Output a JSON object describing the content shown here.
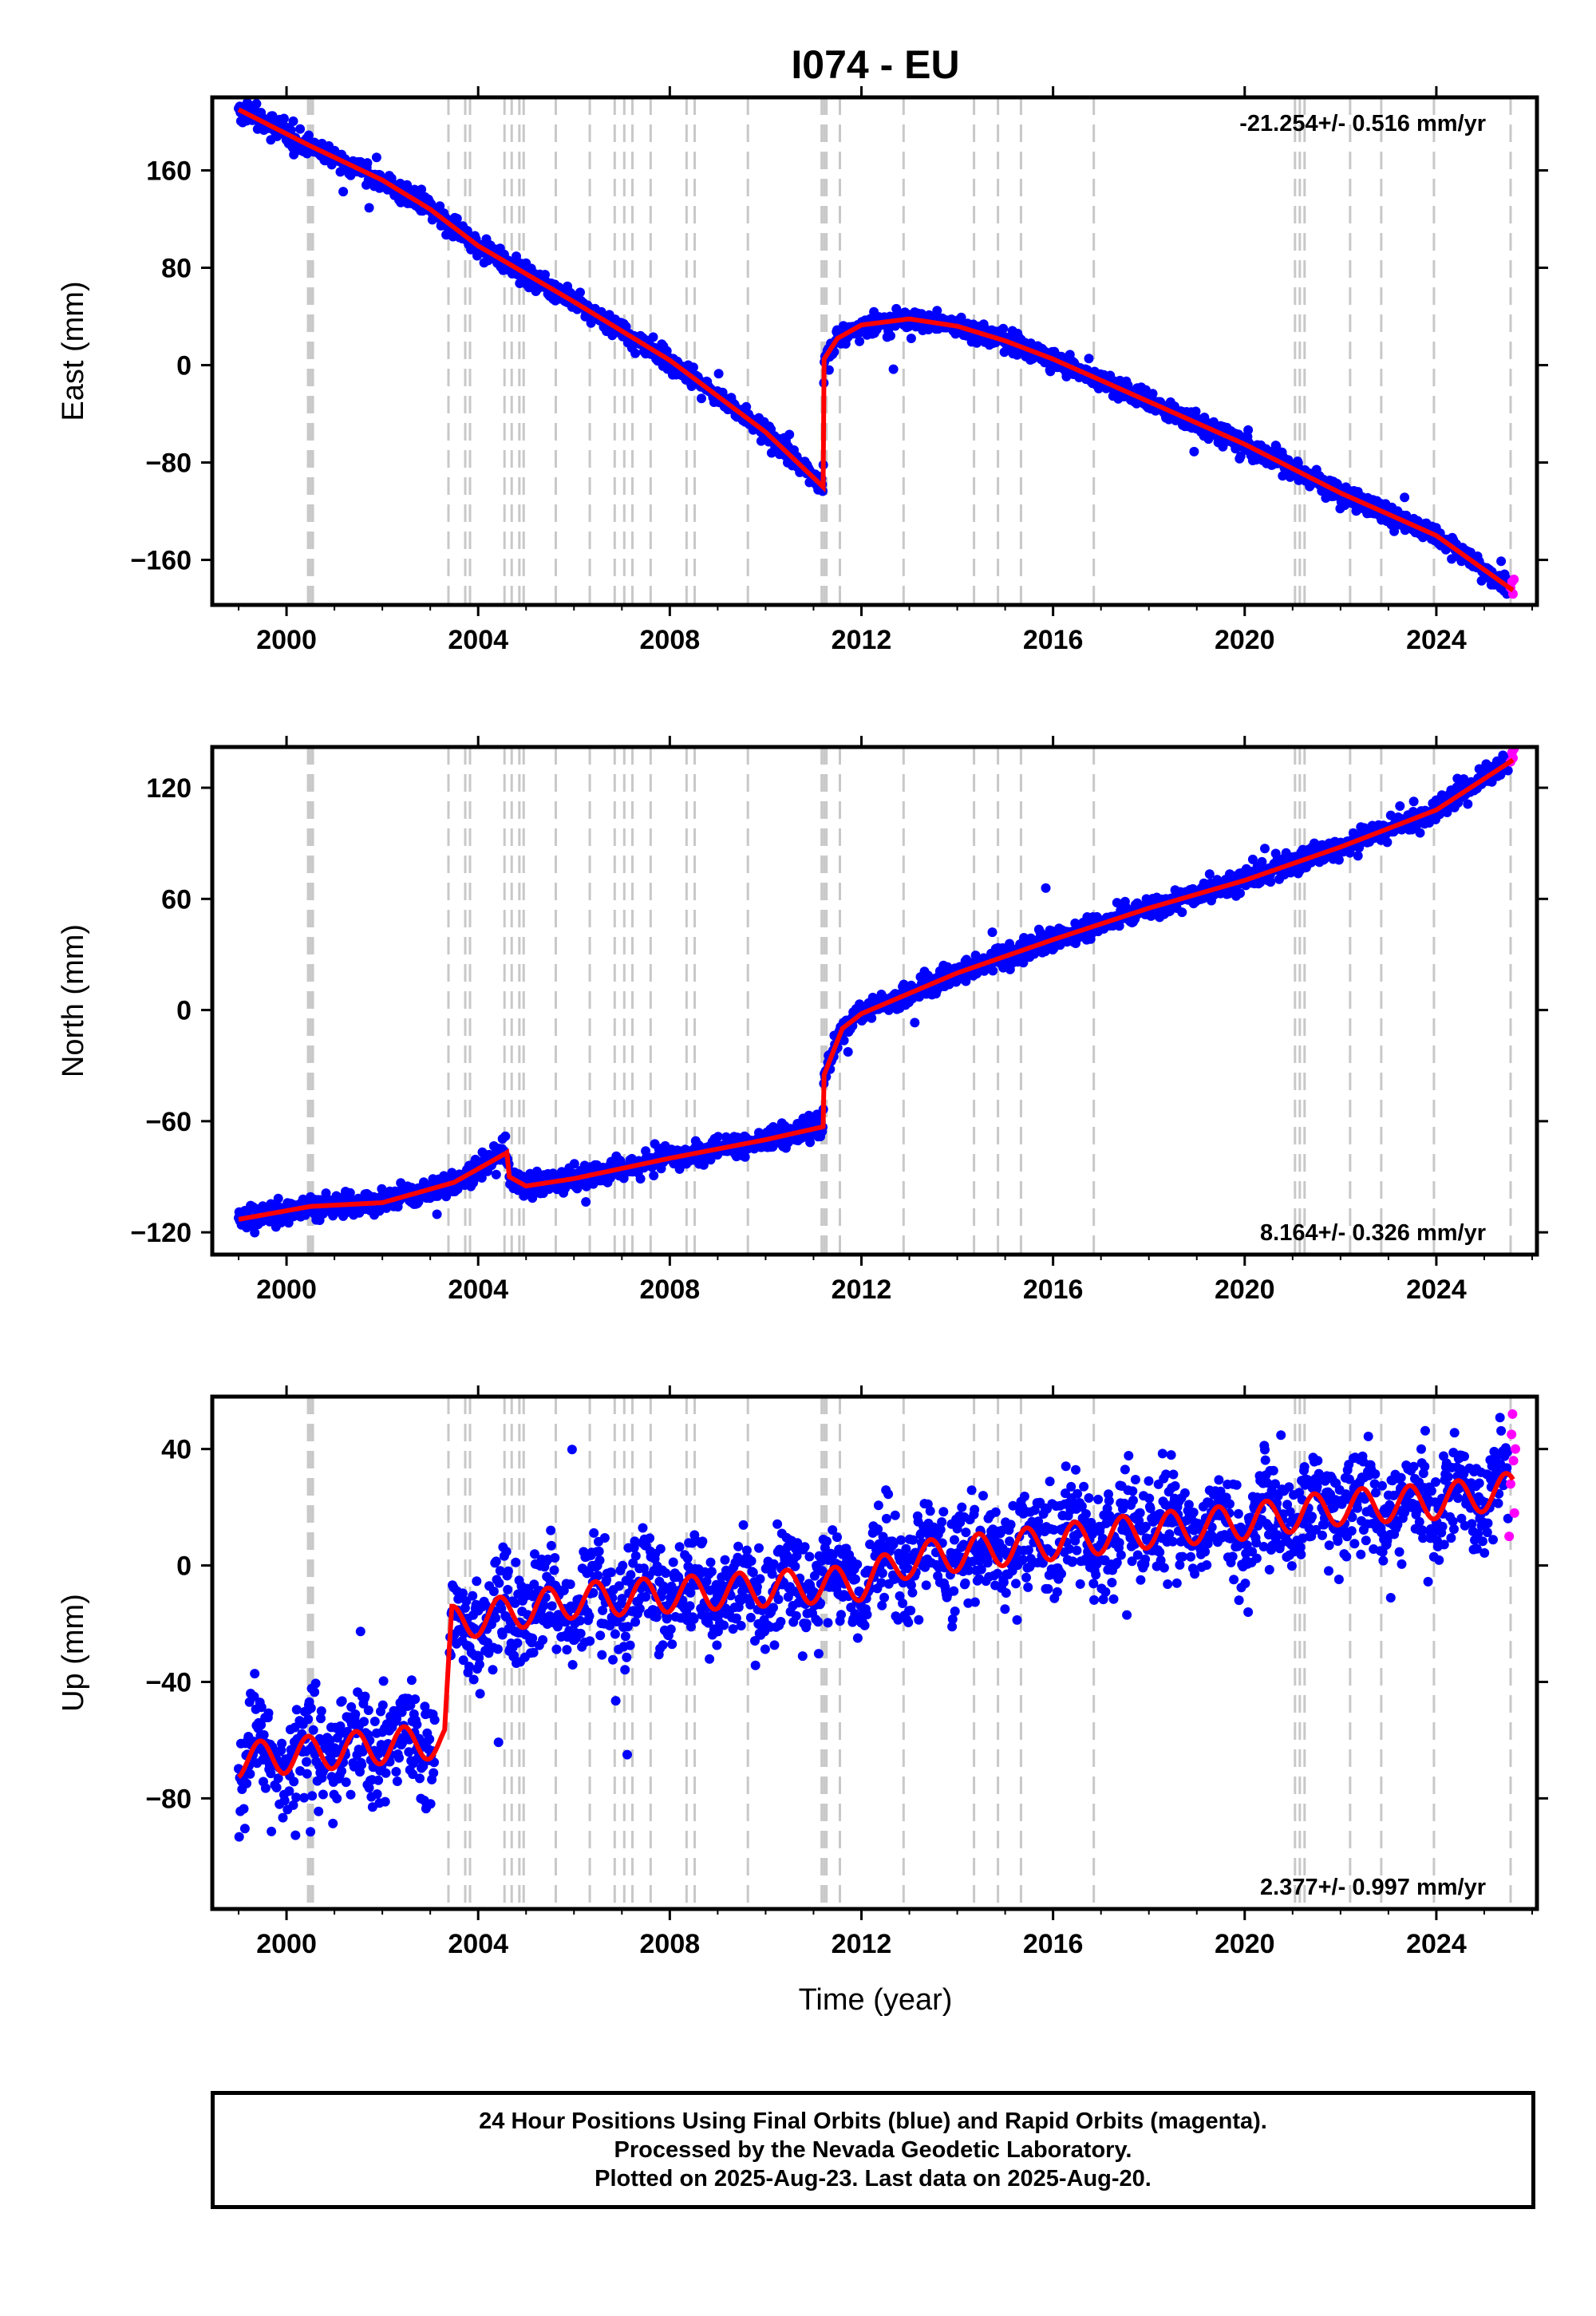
{
  "figure": {
    "title": "I074 - EU",
    "xlabel": "Time (year)"
  },
  "colors": {
    "final_orbits": "#0000ff",
    "rapid_orbits": "#ff00ff",
    "model": "#ff0000",
    "event_lines": "#c8c8c8",
    "frame": "#000000"
  },
  "chart_data": [
    {
      "type": "scatter",
      "name": "east",
      "ylabel": "East (mm)",
      "rate_label": "-21.254+/- 0.516 mm/yr",
      "rate_position": "top-right",
      "xlim": [
        1998.45,
        2026.1
      ],
      "ylim": [
        -197,
        220
      ],
      "xticks": [
        2000,
        2004,
        2008,
        2012,
        2016,
        2020,
        2024
      ],
      "xtick_labels": [
        "2000",
        "2004",
        "2008",
        "2012",
        "2016",
        "2020",
        "2024"
      ],
      "yticks": [
        -160,
        -80,
        0,
        80,
        160
      ],
      "ytick_labels": [
        "−160",
        "−80",
        "0",
        "80",
        "160"
      ],
      "model_knots": [
        [
          1999.0,
          210
        ],
        [
          2000.5,
          180
        ],
        [
          2002.0,
          152
        ],
        [
          2003.0,
          128
        ],
        [
          2004.0,
          98
        ],
        [
          2006.0,
          52
        ],
        [
          2008.0,
          4
        ],
        [
          2010.0,
          -55
        ],
        [
          2011.2,
          -100
        ],
        [
          2011.22,
          5
        ],
        [
          2011.5,
          22
        ],
        [
          2012.0,
          33
        ],
        [
          2013.0,
          38
        ],
        [
          2014.0,
          32
        ],
        [
          2015.0,
          20
        ],
        [
          2016.0,
          5
        ],
        [
          2018.0,
          -30
        ],
        [
          2020.0,
          -65
        ],
        [
          2022.0,
          -105
        ],
        [
          2024.0,
          -140
        ],
        [
          2025.6,
          -185
        ]
      ],
      "noise_sigma": 4,
      "seasonal_amp": 0,
      "rapid_points": [
        [
          2025.55,
          -183
        ],
        [
          2025.58,
          -178
        ],
        [
          2025.6,
          -188
        ],
        [
          2025.62,
          -176
        ]
      ]
    },
    {
      "type": "scatter",
      "name": "north",
      "ylabel": "North (mm)",
      "rate_label": "8.164+/- 0.326 mm/yr",
      "rate_position": "bottom-right",
      "xlim": [
        1998.45,
        2026.1
      ],
      "ylim": [
        -132,
        142
      ],
      "xticks": [
        2000,
        2004,
        2008,
        2012,
        2016,
        2020,
        2024
      ],
      "xtick_labels": [
        "2000",
        "2004",
        "2008",
        "2012",
        "2016",
        "2020",
        "2024"
      ],
      "yticks": [
        -120,
        -60,
        0,
        60,
        120
      ],
      "ytick_labels": [
        "−120",
        "−60",
        "0",
        "60",
        "120"
      ],
      "model_knots": [
        [
          1999.0,
          -113
        ],
        [
          2000.5,
          -106
        ],
        [
          2002.0,
          -104
        ],
        [
          2003.5,
          -93
        ],
        [
          2004.6,
          -77
        ],
        [
          2004.65,
          -90
        ],
        [
          2005.0,
          -95
        ],
        [
          2006.0,
          -91
        ],
        [
          2008.0,
          -80
        ],
        [
          2010.0,
          -70
        ],
        [
          2011.2,
          -63
        ],
        [
          2011.22,
          -35
        ],
        [
          2011.6,
          -10
        ],
        [
          2012.0,
          -2
        ],
        [
          2014.0,
          20
        ],
        [
          2016.0,
          38
        ],
        [
          2018.0,
          55
        ],
        [
          2020.0,
          70
        ],
        [
          2022.0,
          88
        ],
        [
          2024.0,
          108
        ],
        [
          2025.6,
          135
        ]
      ],
      "noise_sigma": 3,
      "seasonal_amp": 0,
      "rapid_points": [
        [
          2025.55,
          134
        ],
        [
          2025.58,
          139
        ],
        [
          2025.6,
          136
        ],
        [
          2025.62,
          141
        ]
      ]
    },
    {
      "type": "scatter",
      "name": "up",
      "ylabel": "Up (mm)",
      "rate_label": "2.377+/- 0.997 mm/yr",
      "rate_position": "bottom-right",
      "xlim": [
        1998.45,
        2026.1
      ],
      "ylim": [
        -118,
        58
      ],
      "xticks": [
        2000,
        2004,
        2008,
        2012,
        2016,
        2020,
        2024
      ],
      "xtick_labels": [
        "2000",
        "2004",
        "2008",
        "2012",
        "2016",
        "2020",
        "2024"
      ],
      "yticks": [
        -80,
        -40,
        0,
        40
      ],
      "ytick_labels": [
        "−80",
        "−40",
        "0",
        "40"
      ],
      "model_knots": [
        [
          1999.0,
          -67
        ],
        [
          2003.3,
          -60
        ],
        [
          2003.45,
          -20
        ],
        [
          2006.0,
          -12
        ],
        [
          2008.0,
          -10
        ],
        [
          2010.0,
          -8
        ],
        [
          2012.0,
          -6
        ],
        [
          2013.0,
          2
        ],
        [
          2016.0,
          8
        ],
        [
          2018.0,
          12
        ],
        [
          2020.0,
          15
        ],
        [
          2022.0,
          20
        ],
        [
          2024.0,
          22
        ],
        [
          2025.6,
          26
        ]
      ],
      "noise_sigma": 9,
      "seasonal_amp": 6,
      "rapid_points": [
        [
          2025.52,
          10
        ],
        [
          2025.55,
          28
        ],
        [
          2025.57,
          45
        ],
        [
          2025.59,
          52
        ],
        [
          2025.61,
          36
        ],
        [
          2025.63,
          18
        ],
        [
          2025.65,
          40
        ]
      ]
    }
  ],
  "event_lines": [
    2000.45,
    2000.5,
    2000.55,
    2003.38,
    2003.73,
    2003.83,
    2004.55,
    2004.7,
    2004.86,
    2004.95,
    2005.62,
    2006.33,
    2006.85,
    2007.05,
    2007.22,
    2007.6,
    2008.35,
    2008.52,
    2009.63,
    2011.17,
    2011.22,
    2011.27,
    2011.55,
    2012.88,
    2014.35,
    2014.85,
    2015.33,
    2016.85,
    2021.05,
    2021.15,
    2021.25,
    2022.2,
    2022.85,
    2023.95,
    2025.55
  ],
  "footer": {
    "line1": "24 Hour Positions Using Final Orbits (blue) and Rapid Orbits (magenta).",
    "line2": "Processed by the Nevada Geodetic Laboratory.",
    "line3": "Plotted on 2025-Aug-23. Last data on 2025-Aug-20."
  }
}
